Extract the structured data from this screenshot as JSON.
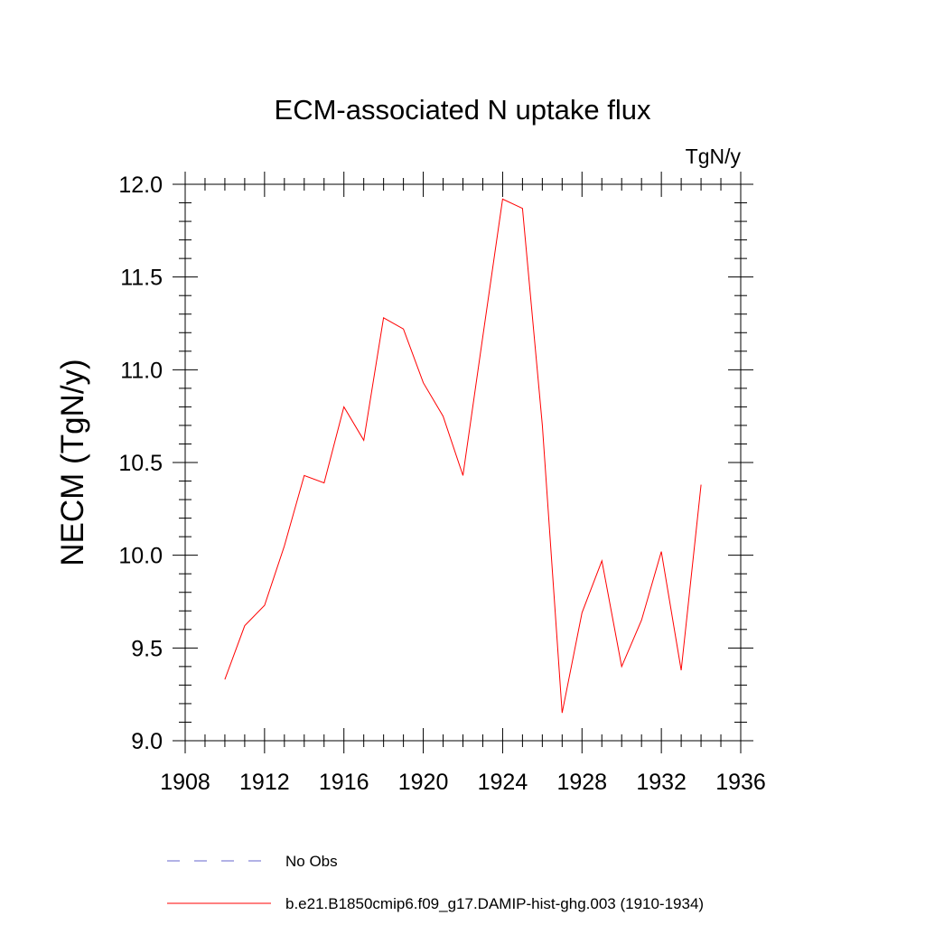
{
  "chart_data": {
    "type": "line",
    "title": "ECM-associated N uptake flux",
    "units": "TgN/y",
    "ylabel": "NECM  (TgN/y)",
    "xlabel": "",
    "xlim": [
      1908,
      1936
    ],
    "ylim": [
      9.0,
      12.0
    ],
    "x_ticks": [
      1908,
      1912,
      1916,
      1920,
      1924,
      1928,
      1932,
      1936
    ],
    "y_ticks": [
      "9.0",
      "9.5",
      "10.0",
      "10.5",
      "11.0",
      "11.5",
      "12.0"
    ],
    "grid": false,
    "legend_position": "bottom",
    "series": [
      {
        "name": "b.e21.B1850cmip6.f09_g17.DAMIP-hist-ghg.003 (1910-1934)",
        "color": "#ff0000",
        "style": "solid",
        "x": [
          1910,
          1911,
          1912,
          1913,
          1914,
          1915,
          1916,
          1917,
          1918,
          1919,
          1920,
          1921,
          1922,
          1923,
          1924,
          1925,
          1926,
          1927,
          1928,
          1929,
          1930,
          1931,
          1932,
          1933,
          1934
        ],
        "values": [
          9.33,
          9.62,
          9.73,
          10.05,
          10.43,
          10.39,
          10.8,
          10.62,
          11.28,
          11.22,
          10.93,
          10.75,
          10.43,
          11.18,
          11.92,
          11.87,
          10.7,
          9.15,
          9.69,
          9.97,
          9.4,
          9.65,
          10.02,
          9.38,
          10.38
        ]
      }
    ],
    "legend": [
      {
        "label": "No Obs",
        "color": "#6666cc",
        "style": "dashed"
      },
      {
        "label": "b.e21.B1850cmip6.f09_g17.DAMIP-hist-ghg.003 (1910-1934)",
        "color": "#ff0000",
        "style": "solid"
      }
    ]
  }
}
